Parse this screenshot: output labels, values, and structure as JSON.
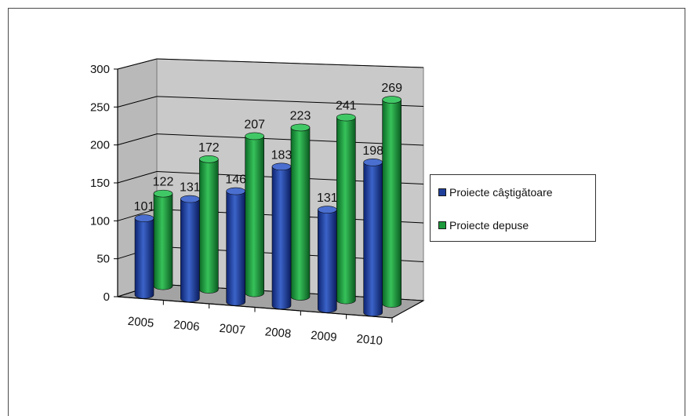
{
  "chart_data": {
    "type": "bar",
    "title": "",
    "xlabel": "",
    "ylabel": "",
    "categories": [
      "2005",
      "2006",
      "2007",
      "2008",
      "2009",
      "2010"
    ],
    "series": [
      {
        "name": "Proiecte câştigătoare",
        "values": [
          101,
          131,
          146,
          183,
          131,
          198
        ],
        "color": "#1f3f9a"
      },
      {
        "name": "Proiecte depuse",
        "values": [
          122,
          172,
          207,
          223,
          241,
          269
        ],
        "color": "#1e9a3c"
      }
    ],
    "ylim": [
      0,
      300
    ],
    "yticks": [
      "0",
      "50",
      "100",
      "150",
      "200",
      "250",
      "300"
    ],
    "grid": true,
    "legend_position": "right",
    "style": "3d-cylinder",
    "colors": {
      "wall": "#c9c9c9",
      "floor": "#a3a3a3",
      "grid": "#000000"
    }
  }
}
